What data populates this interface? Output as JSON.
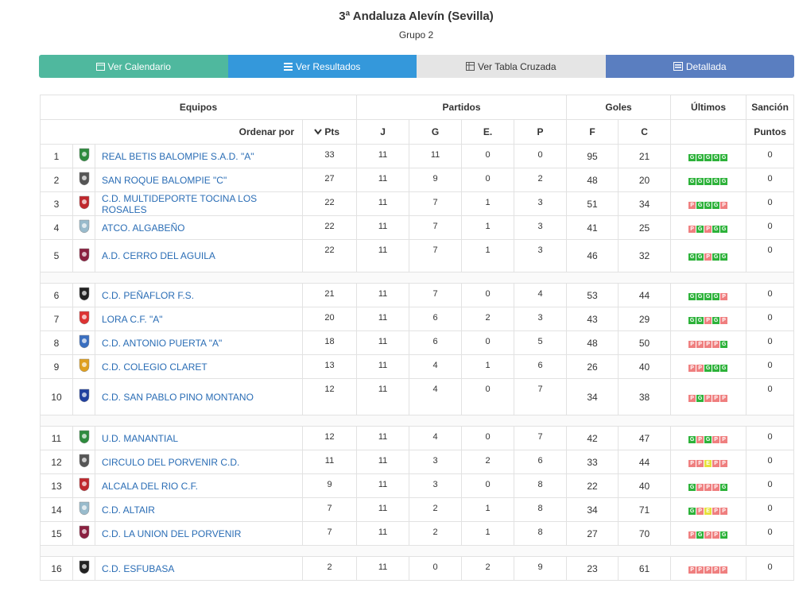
{
  "header": {
    "title": "3ª Andaluza Alevín (Sevilla)",
    "subtitle": "Grupo 2"
  },
  "tabs": [
    "Ver Calendario",
    "Ver Resultados",
    "Ver Tabla Cruzada",
    "Detallada"
  ],
  "table": {
    "head1": {
      "equipos": "Equipos",
      "partidos": "Partidos",
      "goles": "Goles",
      "ultimos": "Últimos",
      "sancion": "Sanción"
    },
    "head2": {
      "ordenar": "Ordenar por",
      "pts": "Pts",
      "j": "J",
      "g": "G",
      "e": "E.",
      "p": "P",
      "f": "F",
      "c": "C",
      "puntos": "Puntos"
    },
    "groups": [
      [
        {
          "pos": 1,
          "team": "REAL BETIS BALOMPIE S.A.D. \"A\"",
          "pts": 33,
          "j": 11,
          "g": 11,
          "e": 0,
          "p": 0,
          "f": 95,
          "c": 21,
          "last": [
            "G",
            "G",
            "G",
            "G",
            "G"
          ],
          "sancion": 0
        },
        {
          "pos": 2,
          "team": "SAN ROQUE BALOMPIE \"C\"",
          "pts": 27,
          "j": 11,
          "g": 9,
          "e": 0,
          "p": 2,
          "f": 48,
          "c": 20,
          "last": [
            "G",
            "G",
            "G",
            "G",
            "G"
          ],
          "sancion": 0
        },
        {
          "pos": 3,
          "team": "C.D. MULTIDEPORTE TOCINA LOS ROSALES",
          "pts": 22,
          "j": 11,
          "g": 7,
          "e": 1,
          "p": 3,
          "f": 51,
          "c": 34,
          "last": [
            "P",
            "G",
            "G",
            "G",
            "P"
          ],
          "sancion": 0
        },
        {
          "pos": 4,
          "team": "ATCO. ALGABEÑO",
          "pts": 22,
          "j": 11,
          "g": 7,
          "e": 1,
          "p": 3,
          "f": 41,
          "c": 25,
          "last": [
            "P",
            "G",
            "P",
            "G",
            "G"
          ],
          "sancion": 0
        },
        {
          "pos": 5,
          "team": "A.D. CERRO DEL AGUILA",
          "pts": 22,
          "j": 11,
          "g": 7,
          "e": 1,
          "p": 3,
          "f": 46,
          "c": 32,
          "last": [
            "G",
            "G",
            "P",
            "G",
            "G"
          ],
          "sancion": 0
        }
      ],
      [
        {
          "pos": 6,
          "team": "C.D. PEÑAFLOR F.S.",
          "pts": 21,
          "j": 11,
          "g": 7,
          "e": 0,
          "p": 4,
          "f": 53,
          "c": 44,
          "last": [
            "G",
            "G",
            "G",
            "G",
            "P"
          ],
          "sancion": 0
        },
        {
          "pos": 7,
          "team": "LORA C.F. \"A\"",
          "pts": 20,
          "j": 11,
          "g": 6,
          "e": 2,
          "p": 3,
          "f": 43,
          "c": 29,
          "last": [
            "G",
            "G",
            "P",
            "G",
            "P"
          ],
          "sancion": 0
        },
        {
          "pos": 8,
          "team": "C.D. ANTONIO PUERTA \"A\"",
          "pts": 18,
          "j": 11,
          "g": 6,
          "e": 0,
          "p": 5,
          "f": 48,
          "c": 50,
          "last": [
            "P",
            "P",
            "P",
            "P",
            "G"
          ],
          "sancion": 0
        },
        {
          "pos": 9,
          "team": "C.D. COLEGIO CLARET",
          "pts": 13,
          "j": 11,
          "g": 4,
          "e": 1,
          "p": 6,
          "f": 26,
          "c": 40,
          "last": [
            "P",
            "P",
            "G",
            "G",
            "G"
          ],
          "sancion": 0
        },
        {
          "pos": 10,
          "team": "C.D. SAN PABLO PINO MONTANO",
          "pts": 12,
          "j": 11,
          "g": 4,
          "e": 0,
          "p": 7,
          "f": 34,
          "c": 38,
          "last": [
            "P",
            "G",
            "P",
            "P",
            "P"
          ],
          "sancion": 0
        }
      ],
      [
        {
          "pos": 11,
          "team": "U.D. MANANTIAL",
          "pts": 12,
          "j": 11,
          "g": 4,
          "e": 0,
          "p": 7,
          "f": 42,
          "c": 47,
          "last": [
            "G",
            "P",
            "G",
            "P",
            "P"
          ],
          "sancion": 0
        },
        {
          "pos": 12,
          "team": "CIRCULO DEL PORVENIR C.D.",
          "pts": 11,
          "j": 11,
          "g": 3,
          "e": 2,
          "p": 6,
          "f": 33,
          "c": 44,
          "last": [
            "P",
            "P",
            "E",
            "P",
            "P"
          ],
          "sancion": 0
        },
        {
          "pos": 13,
          "team": "ALCALA DEL RIO C.F.",
          "pts": 9,
          "j": 11,
          "g": 3,
          "e": 0,
          "p": 8,
          "f": 22,
          "c": 40,
          "last": [
            "G",
            "P",
            "P",
            "P",
            "G"
          ],
          "sancion": 0
        },
        {
          "pos": 14,
          "team": "C.D. ALTAIR",
          "pts": 7,
          "j": 11,
          "g": 2,
          "e": 1,
          "p": 8,
          "f": 34,
          "c": 71,
          "last": [
            "G",
            "P",
            "E",
            "P",
            "P"
          ],
          "sancion": 0
        },
        {
          "pos": 15,
          "team": "C.D. LA UNION DEL PORVENIR",
          "pts": 7,
          "j": 11,
          "g": 2,
          "e": 1,
          "p": 8,
          "f": 27,
          "c": 70,
          "last": [
            "P",
            "G",
            "P",
            "P",
            "G"
          ],
          "sancion": 0
        }
      ],
      [
        {
          "pos": 16,
          "team": "C.D. ESFUBASA",
          "pts": 2,
          "j": 11,
          "g": 0,
          "e": 2,
          "p": 9,
          "f": 23,
          "c": 61,
          "last": [
            "P",
            "P",
            "P",
            "P",
            "P"
          ],
          "sancion": 0
        }
      ]
    ]
  }
}
